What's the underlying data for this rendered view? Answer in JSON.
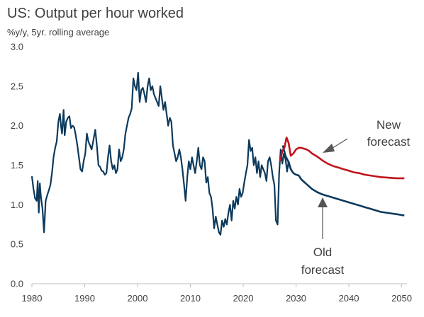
{
  "chart_data": {
    "type": "line",
    "title": "US: Output per hour worked",
    "subtitle": "%y/y, 5yr. rolling average",
    "xlabel": "",
    "ylabel": "",
    "xlim": [
      1980,
      2051
    ],
    "ylim": [
      0,
      3.0
    ],
    "x_ticks": [
      1980,
      1990,
      2000,
      2010,
      2020,
      2030,
      2040,
      2050
    ],
    "y_ticks": [
      0.0,
      0.5,
      1.0,
      1.5,
      2.0,
      2.5,
      3.0
    ],
    "y_tick_labels": [
      "0.0",
      "0.5",
      "1.0",
      "1.5",
      "2.0",
      "2.5",
      "3.0"
    ],
    "grid": false,
    "colors": {
      "history": "#0d3a5c",
      "new_forecast": "#c0141c",
      "arrow": "#555555"
    },
    "series": [
      {
        "key": "history",
        "x": [
          1980.0,
          1980.3,
          1980.6,
          1980.9,
          1981.1,
          1981.3,
          1981.5,
          1981.7,
          1982.0,
          1982.3,
          1982.6,
          1982.9,
          1983.2,
          1983.5,
          1983.8,
          1984.1,
          1984.4,
          1984.7,
          1985.0,
          1985.3,
          1985.5,
          1985.7,
          1986.0,
          1986.2,
          1986.5,
          1986.8,
          1987.1,
          1987.4,
          1987.7,
          1988.0,
          1988.3,
          1988.6,
          1988.9,
          1989.2,
          1989.5,
          1989.8,
          1990.1,
          1990.4,
          1990.7,
          1991.0,
          1991.3,
          1991.6,
          1992.0,
          1992.3,
          1992.6,
          1992.9,
          1993.2,
          1993.5,
          1993.8,
          1994.1,
          1994.4,
          1994.7,
          1995.0,
          1995.3,
          1995.6,
          1995.9,
          1996.2,
          1996.5,
          1996.8,
          1997.1,
          1997.4,
          1997.7,
          1998.0,
          1998.3,
          1998.6,
          1998.9,
          1999.2,
          1999.5,
          1999.8,
          2000.1,
          2000.4,
          2000.7,
          2001.0,
          2001.3,
          2001.6,
          2001.9,
          2002.2,
          2002.5,
          2002.8,
          2003.1,
          2003.4,
          2003.7,
          2004.0,
          2004.3,
          2004.6,
          2004.9,
          2005.2,
          2005.5,
          2005.8,
          2006.1,
          2006.4,
          2006.7,
          2007.0,
          2007.3,
          2007.6,
          2007.9,
          2008.2,
          2008.5,
          2008.8,
          2009.1,
          2009.4,
          2009.7,
          2010.0,
          2010.3,
          2010.6,
          2010.9,
          2011.2,
          2011.5,
          2011.8,
          2012.1,
          2012.4,
          2012.7,
          2013.0,
          2013.3,
          2013.6,
          2013.9,
          2014.2,
          2014.5,
          2014.8,
          2015.1,
          2015.4,
          2015.7,
          2016.0,
          2016.3,
          2016.6,
          2016.9,
          2017.2,
          2017.5,
          2017.8,
          2018.1,
          2018.4,
          2018.7,
          2019.0,
          2019.3,
          2019.6,
          2019.9,
          2020.2,
          2020.5,
          2020.8,
          2021.1,
          2021.4,
          2021.7,
          2022.0,
          2022.3,
          2022.6,
          2022.9,
          2023.2,
          2023.5,
          2023.8,
          2024.1,
          2024.4,
          2024.7,
          2025.0,
          2025.3,
          2025.6,
          2025.9,
          2026.2,
          2026.5,
          2026.8,
          2027.1,
          2027.4,
          2027.7,
          2028.0,
          2028.3,
          2028.6,
          2028.9,
          2029.2
        ],
        "y": [
          1.36,
          1.2,
          1.08,
          1.05,
          1.3,
          0.9,
          1.27,
          1.1,
          0.95,
          0.65,
          1.05,
          1.12,
          1.18,
          1.25,
          1.4,
          1.6,
          1.72,
          1.8,
          2.05,
          2.15,
          2.0,
          1.9,
          2.2,
          1.88,
          2.05,
          2.1,
          2.12,
          1.97,
          2.0,
          1.98,
          1.88,
          1.75,
          1.6,
          1.45,
          1.42,
          1.55,
          1.65,
          1.9,
          1.8,
          1.75,
          1.7,
          1.8,
          1.95,
          1.75,
          1.5,
          1.48,
          1.43,
          1.42,
          1.38,
          1.4,
          1.6,
          1.75,
          1.55,
          1.45,
          1.5,
          1.4,
          1.45,
          1.7,
          1.55,
          1.6,
          1.7,
          1.9,
          2.0,
          2.1,
          2.15,
          2.22,
          2.6,
          2.5,
          2.45,
          2.67,
          2.3,
          2.45,
          2.48,
          2.4,
          2.3,
          2.5,
          2.6,
          2.45,
          2.5,
          2.4,
          2.35,
          2.3,
          2.25,
          2.5,
          2.35,
          2.2,
          2.3,
          2.15,
          2.0,
          2.1,
          2.05,
          1.75,
          1.65,
          1.55,
          1.6,
          1.7,
          1.6,
          1.45,
          1.25,
          1.05,
          1.35,
          1.55,
          1.45,
          1.6,
          1.5,
          1.4,
          1.55,
          1.72,
          1.5,
          1.45,
          1.6,
          1.55,
          1.28,
          1.35,
          1.15,
          1.1,
          0.95,
          0.7,
          0.85,
          0.75,
          0.65,
          0.62,
          0.8,
          0.72,
          0.82,
          0.75,
          0.9,
          1.0,
          0.8,
          1.05,
          0.95,
          1.1,
          1.0,
          1.2,
          1.1,
          1.15,
          1.28,
          1.4,
          1.5,
          1.82,
          1.68,
          1.72,
          1.5,
          1.6,
          1.4,
          1.55,
          1.35,
          1.5,
          1.45,
          1.4,
          1.3,
          1.55,
          1.6,
          1.5,
          1.35,
          1.25,
          0.8,
          0.75,
          1.4,
          1.7,
          1.52,
          1.65,
          1.58,
          1.42,
          1.55,
          1.48,
          1.42
        ]
      },
      {
        "key": "new_forecast",
        "x": [
          2027.0,
          2027.4,
          2027.8,
          2028.2,
          2028.6,
          2029.0,
          2029.5,
          2030.0,
          2030.5,
          2031.0,
          2031.5,
          2032.0,
          2032.5,
          2033.0,
          2034.0,
          2035.0,
          2036.0,
          2037.0,
          2038.0,
          2039.0,
          2040.0,
          2041.0,
          2042.0,
          2043.0,
          2044.0,
          2045.0,
          2046.0,
          2047.0,
          2048.0,
          2049.0,
          2050.0,
          2050.5
        ],
        "y": [
          1.55,
          1.68,
          1.72,
          1.85,
          1.78,
          1.62,
          1.65,
          1.7,
          1.72,
          1.72,
          1.71,
          1.7,
          1.68,
          1.65,
          1.61,
          1.56,
          1.52,
          1.49,
          1.47,
          1.45,
          1.43,
          1.41,
          1.4,
          1.38,
          1.37,
          1.36,
          1.35,
          1.345,
          1.34,
          1.335,
          1.335,
          1.335
        ]
      },
      {
        "key": "old_forecast",
        "x": [
          2027.5,
          2028.0,
          2028.5,
          2029.0,
          2029.5,
          2030.0,
          2030.5,
          2031.0,
          2032.0,
          2033.0,
          2034.0,
          2035.0,
          2036.0,
          2037.0,
          2038.0,
          2039.0,
          2040.0,
          2041.0,
          2042.0,
          2043.0,
          2044.0,
          2045.0,
          2046.0,
          2047.0,
          2048.0,
          2049.0,
          2050.0,
          2050.5
        ],
        "y": [
          1.75,
          1.62,
          1.55,
          1.45,
          1.4,
          1.38,
          1.37,
          1.32,
          1.26,
          1.2,
          1.16,
          1.13,
          1.11,
          1.09,
          1.07,
          1.05,
          1.03,
          1.01,
          0.99,
          0.97,
          0.95,
          0.93,
          0.91,
          0.9,
          0.89,
          0.88,
          0.87,
          0.865
        ]
      }
    ],
    "annotations": [
      {
        "key": "new",
        "lines": [
          "New",
          "forecast"
        ]
      },
      {
        "key": "old",
        "lines": [
          "Old",
          "forecast"
        ]
      }
    ]
  }
}
